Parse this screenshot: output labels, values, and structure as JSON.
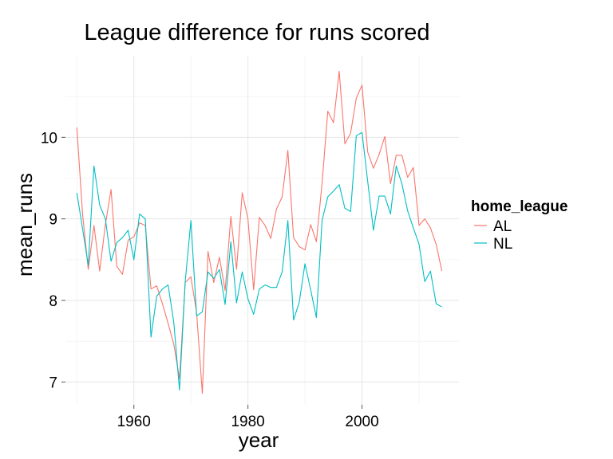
{
  "chart_data": {
    "type": "line",
    "title": "League difference for runs scored",
    "xlabel": "year",
    "ylabel": "mean_runs",
    "xlim": [
      1948,
      2017
    ],
    "ylim": [
      6.72,
      11.0
    ],
    "x_ticks": [
      1960,
      1980,
      2000
    ],
    "y_ticks": [
      7,
      8,
      9,
      10
    ],
    "grid": true,
    "legend": {
      "title": "home_league",
      "position": "right"
    },
    "x": [
      1950,
      1951,
      1952,
      1953,
      1954,
      1955,
      1956,
      1957,
      1958,
      1959,
      1960,
      1961,
      1962,
      1963,
      1964,
      1965,
      1966,
      1967,
      1968,
      1969,
      1970,
      1971,
      1972,
      1973,
      1974,
      1975,
      1976,
      1977,
      1978,
      1979,
      1980,
      1981,
      1982,
      1983,
      1984,
      1985,
      1986,
      1987,
      1988,
      1989,
      1990,
      1991,
      1992,
      1993,
      1994,
      1995,
      1996,
      1997,
      1998,
      1999,
      2000,
      2001,
      2002,
      2003,
      2004,
      2005,
      2006,
      2007,
      2008,
      2009,
      2010,
      2011,
      2012,
      2013,
      2014
    ],
    "series": [
      {
        "name": "AL",
        "color": "#F8766D",
        "values": [
          10.12,
          9.06,
          8.38,
          8.92,
          8.36,
          8.93,
          9.36,
          8.42,
          8.32,
          8.74,
          8.78,
          8.95,
          8.92,
          8.14,
          8.18,
          7.96,
          7.72,
          7.46,
          7.04,
          8.22,
          8.29,
          7.85,
          6.86,
          8.6,
          8.22,
          8.53,
          8.12,
          9.03,
          8.38,
          9.32,
          9.0,
          8.13,
          9.02,
          8.92,
          8.76,
          9.12,
          9.27,
          9.84,
          8.77,
          8.66,
          8.62,
          8.93,
          8.72,
          9.44,
          10.32,
          10.18,
          10.81,
          9.92,
          10.05,
          10.48,
          10.64,
          9.82,
          9.62,
          9.79,
          10.01,
          9.43,
          9.78,
          9.78,
          9.51,
          9.63,
          8.92,
          9.0,
          8.89,
          8.69,
          8.36
        ]
      },
      {
        "name": "NL",
        "color": "#00BFC4",
        "values": [
          9.32,
          8.88,
          8.43,
          9.65,
          9.17,
          9.0,
          8.48,
          8.71,
          8.77,
          8.86,
          8.5,
          9.06,
          9.0,
          7.55,
          8.05,
          8.14,
          8.19,
          7.73,
          6.9,
          8.23,
          8.98,
          7.81,
          7.86,
          8.35,
          8.27,
          8.38,
          7.95,
          8.72,
          7.97,
          8.35,
          8.02,
          7.83,
          8.14,
          8.19,
          8.16,
          8.16,
          8.35,
          8.98,
          7.76,
          7.98,
          8.45,
          8.13,
          7.79,
          8.98,
          9.27,
          9.34,
          9.42,
          9.13,
          9.09,
          10.02,
          10.06,
          9.46,
          8.86,
          9.28,
          9.28,
          9.06,
          9.65,
          9.43,
          9.1,
          8.89,
          8.69,
          8.23,
          8.36,
          7.96,
          7.92
        ]
      }
    ]
  }
}
